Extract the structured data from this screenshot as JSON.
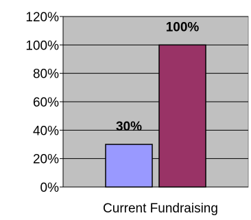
{
  "chart_data": {
    "type": "bar",
    "categories": [
      "Current Fundraising"
    ],
    "series": [
      {
        "values": [
          30
        ],
        "color": "#9999ff",
        "label": "30%"
      },
      {
        "values": [
          100
        ],
        "color": "#993366",
        "label": "100%"
      }
    ],
    "ylim": [
      0,
      120
    ],
    "ytick_step": 20,
    "ytick_labels": [
      "0%",
      "20%",
      "40%",
      "60%",
      "80%",
      "100%",
      "120%"
    ],
    "grid": true,
    "plot_background": "#c0c0c0",
    "title": "",
    "xlabel": "",
    "ylabel": ""
  }
}
